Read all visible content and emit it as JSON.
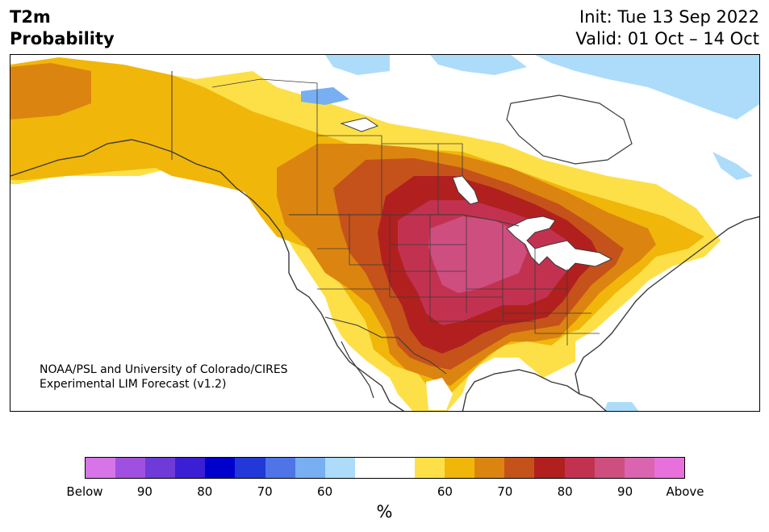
{
  "header": {
    "variable": "T2m",
    "type": "Probability",
    "init": "Init: Tue 13 Sep 2022",
    "valid": "Valid: 01 Oct – 14 Oct"
  },
  "credit": {
    "line1": "NOAA/PSL and University of Colorado/CIRES",
    "line2": "Experimental LIM Forecast (v1.2)"
  },
  "colorbar": {
    "colors": [
      "#d674e8",
      "#a050e0",
      "#6e3ad8",
      "#3a1fd4",
      "#0000cc",
      "#2238d8",
      "#4e74e8",
      "#78aef2",
      "#acdcfa",
      "#ffffff",
      "#ffffff",
      "#fde048",
      "#f1b60a",
      "#dc8410",
      "#c5521a",
      "#b1201e",
      "#c23250",
      "#cf4e80",
      "#db64b0",
      "#e870dc"
    ],
    "tick_labels": [
      "Below",
      "90",
      "80",
      "70",
      "60",
      "60",
      "70",
      "80",
      "90",
      "Above"
    ],
    "unit": "%"
  },
  "map_colors": {
    "land": "#ffffff",
    "outline": "#3a3a3a",
    "cat60": "#fde048",
    "cat70": "#f1b60a",
    "cat75": "#dc8410",
    "cat80": "#c5521a",
    "cat85": "#b1201e",
    "cat90": "#c23250",
    "cat95": "#cf4e80",
    "cold60": "#acdcfa",
    "cold65": "#78aef2"
  }
}
